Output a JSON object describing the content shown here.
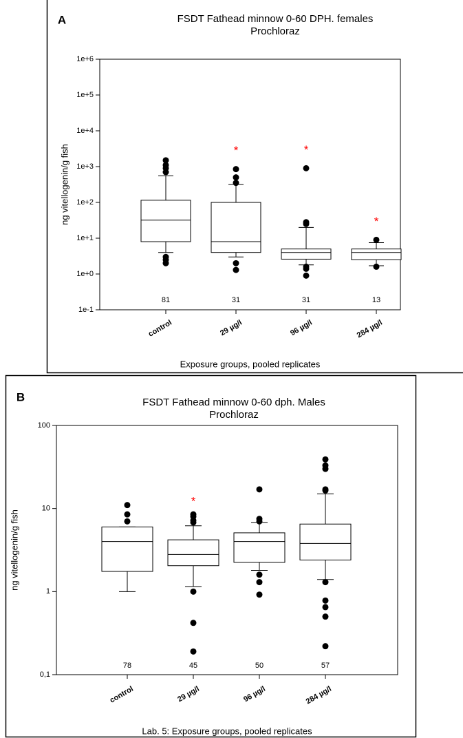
{
  "chart_data": [
    {
      "type": "box",
      "panel_label": "A",
      "title": "FSDT Fathead minnow 0-60 DPH. females",
      "subtitle": "Prochloraz",
      "y_label": "ng vitellogenin/g fish",
      "x_label": "Exposure groups, pooled replicates",
      "log_scale": true,
      "ylim": [
        0.1,
        1000000
      ],
      "yticks": [
        {
          "value": 1000000,
          "label": "1e+6"
        },
        {
          "value": 100000,
          "label": "1e+5"
        },
        {
          "value": 10000,
          "label": "1e+4"
        },
        {
          "value": 1000,
          "label": "1e+3"
        },
        {
          "value": 100,
          "label": "1e+2"
        },
        {
          "value": 10,
          "label": "1e+1"
        },
        {
          "value": 1,
          "label": "1e+0"
        },
        {
          "value": 0.1,
          "label": "1e-1"
        }
      ],
      "categories": [
        "control",
        "29 µg/l",
        "96 µg/l",
        "284 µg/l"
      ],
      "n_labels": [
        81,
        31,
        31,
        13
      ],
      "annotations": [
        null,
        "*",
        "*",
        "*"
      ],
      "annotation_color": "#ff0000",
      "color": "#000000",
      "boxes": [
        {
          "low": 4,
          "q1": 8,
          "median": 32,
          "q3": 115,
          "high": 550,
          "outliers": [
            3,
            2.5,
            2,
            700,
            900,
            1100,
            1500
          ]
        },
        {
          "low": 3,
          "q1": 4,
          "median": 8,
          "q3": 100,
          "high": 320,
          "outliers": [
            2,
            1.3,
            350,
            500,
            850
          ]
        },
        {
          "low": 1.8,
          "q1": 2.6,
          "median": 4,
          "q3": 5,
          "high": 20,
          "outliers": [
            1.6,
            1.4,
            0.9,
            25,
            28,
            900
          ]
        },
        {
          "low": 1.7,
          "q1": 2.5,
          "median": 4,
          "q3": 5,
          "high": 7.5,
          "outliers": [
            1.6,
            9
          ]
        }
      ]
    },
    {
      "type": "box",
      "panel_label": "B",
      "title": "FSDT Fathead minnow 0-60 dph. Males",
      "subtitle": "Prochloraz",
      "y_label": "ng vitellogenin/g fish",
      "x_label": "Lab. 5: Exposure groups, pooled replicates",
      "log_scale": true,
      "ylim": [
        0.1,
        100
      ],
      "yticks": [
        100,
        10,
        1,
        {
          "value": 0.1,
          "label": "0,1"
        }
      ],
      "categories": [
        "control",
        "29 µg/l",
        "96 µg/l",
        "284 µg/l"
      ],
      "n_labels": [
        78,
        45,
        50,
        57
      ],
      "annotations": [
        null,
        "*",
        null,
        null
      ],
      "annotation_color": "#ff0000",
      "color": "#000000",
      "boxes": [
        {
          "low": 1,
          "q1": 1.75,
          "median": 4,
          "q3": 6,
          "high": 6,
          "outliers": [
            7,
            8.5,
            11
          ]
        },
        {
          "low": 1.15,
          "q1": 2.05,
          "median": 2.8,
          "q3": 4.2,
          "high": 6.2,
          "outliers": [
            1,
            0.42,
            0.19,
            6.8,
            7.2,
            8,
            8.5
          ]
        },
        {
          "low": 1.8,
          "q1": 2.25,
          "median": 4,
          "q3": 5.1,
          "high": 6.8,
          "outliers": [
            1.6,
            1.3,
            0.92,
            7,
            7.5,
            17
          ]
        },
        {
          "low": 1.4,
          "q1": 2.4,
          "median": 3.8,
          "q3": 6.5,
          "high": 15,
          "outliers": [
            1.3,
            0.78,
            0.65,
            0.5,
            0.22,
            16.5,
            17,
            30,
            33,
            39
          ]
        }
      ]
    }
  ]
}
